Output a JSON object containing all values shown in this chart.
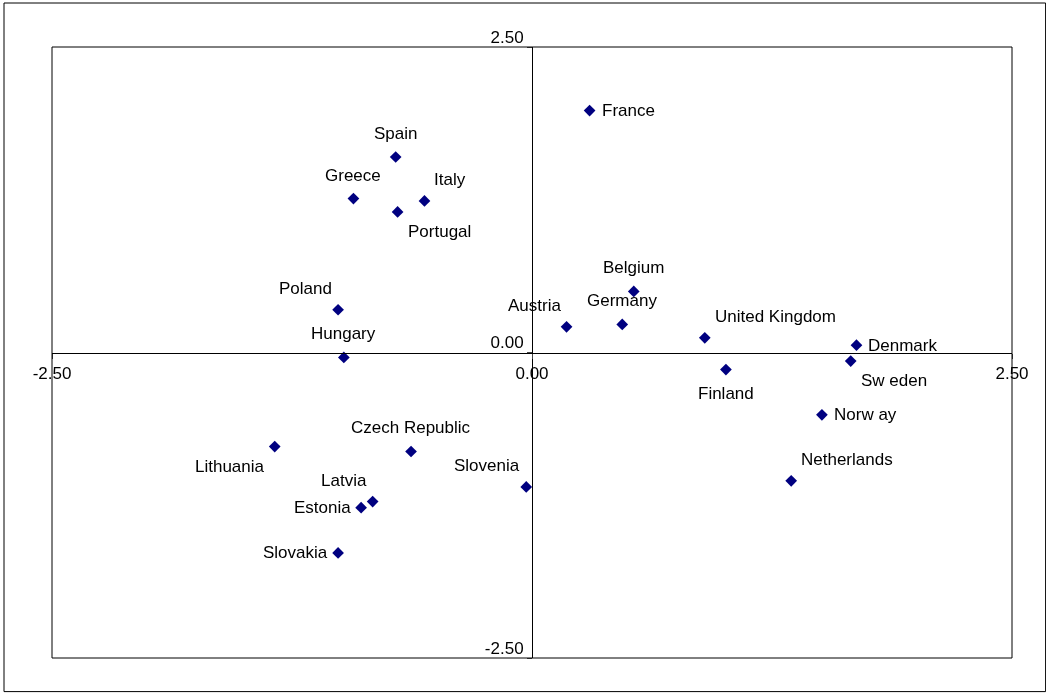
{
  "chart_data": {
    "type": "scatter",
    "marker": "diamond",
    "xlim": [
      -2.5,
      2.5
    ],
    "ylim": [
      -2.5,
      2.5
    ],
    "xticks": [
      {
        "value": -2.5,
        "label": "-2.50"
      },
      {
        "value": 0,
        "label": "0.00"
      },
      {
        "value": 2.5,
        "label": "2.50"
      }
    ],
    "yticks": [
      {
        "value": -2.5,
        "label": "-2.50"
      },
      {
        "value": 0,
        "label": "0.00"
      },
      {
        "value": 2.5,
        "label": "2.50"
      }
    ],
    "series": [
      {
        "color": "#000080",
        "x": [
          0.3,
          -0.71,
          -0.93,
          -0.56,
          -0.7,
          -1.01,
          -0.98,
          0.53,
          0.18,
          0.47,
          0.9,
          1.69,
          1.66,
          1.01,
          1.51,
          1.35,
          -0.03,
          -0.63,
          -1.34,
          -0.83,
          -0.89,
          -1.01
        ],
        "values": [
          1.98,
          1.6,
          1.26,
          1.24,
          1.15,
          0.35,
          -0.04,
          0.5,
          0.21,
          0.23,
          0.12,
          0.06,
          -0.07,
          -0.14,
          -0.51,
          -1.05,
          -1.1,
          -0.81,
          -0.77,
          -1.22,
          -1.27,
          -1.64
        ]
      }
    ],
    "annotations": [
      {
        "text": "France",
        "x": 0.3,
        "y": 1.98
      },
      {
        "text": "Spain",
        "x": -0.71,
        "y": 1.6
      },
      {
        "text": "Greece",
        "x": -0.93,
        "y": 1.26
      },
      {
        "text": "Italy",
        "x": -0.56,
        "y": 1.24
      },
      {
        "text": "Portugal",
        "x": -0.7,
        "y": 1.15
      },
      {
        "text": "Poland",
        "x": -1.01,
        "y": 0.35
      },
      {
        "text": "Hungary",
        "x": -0.98,
        "y": -0.04
      },
      {
        "text": "Belgium",
        "x": 0.53,
        "y": 0.5
      },
      {
        "text": "Austria",
        "x": 0.18,
        "y": 0.21
      },
      {
        "text": "Germany",
        "x": 0.47,
        "y": 0.23
      },
      {
        "text": "United Kingdom",
        "x": 0.9,
        "y": 0.12
      },
      {
        "text": "Denmark",
        "x": 1.69,
        "y": 0.06
      },
      {
        "text": "Sw eden",
        "x": 1.66,
        "y": -0.07
      },
      {
        "text": "Finland",
        "x": 1.01,
        "y": -0.14
      },
      {
        "text": "Norw ay",
        "x": 1.51,
        "y": -0.51
      },
      {
        "text": "Netherlands",
        "x": 1.35,
        "y": -1.05
      },
      {
        "text": "Slovenia",
        "x": -0.03,
        "y": -1.1
      },
      {
        "text": "Czech Republic",
        "x": -0.63,
        "y": -0.81
      },
      {
        "text": "Lithuania",
        "x": -1.34,
        "y": -0.77
      },
      {
        "text": "Latvia",
        "x": -0.83,
        "y": -1.22
      },
      {
        "text": "Estonia",
        "x": -0.89,
        "y": -1.27
      },
      {
        "text": "Slovakia",
        "x": -1.01,
        "y": -1.64
      }
    ]
  }
}
